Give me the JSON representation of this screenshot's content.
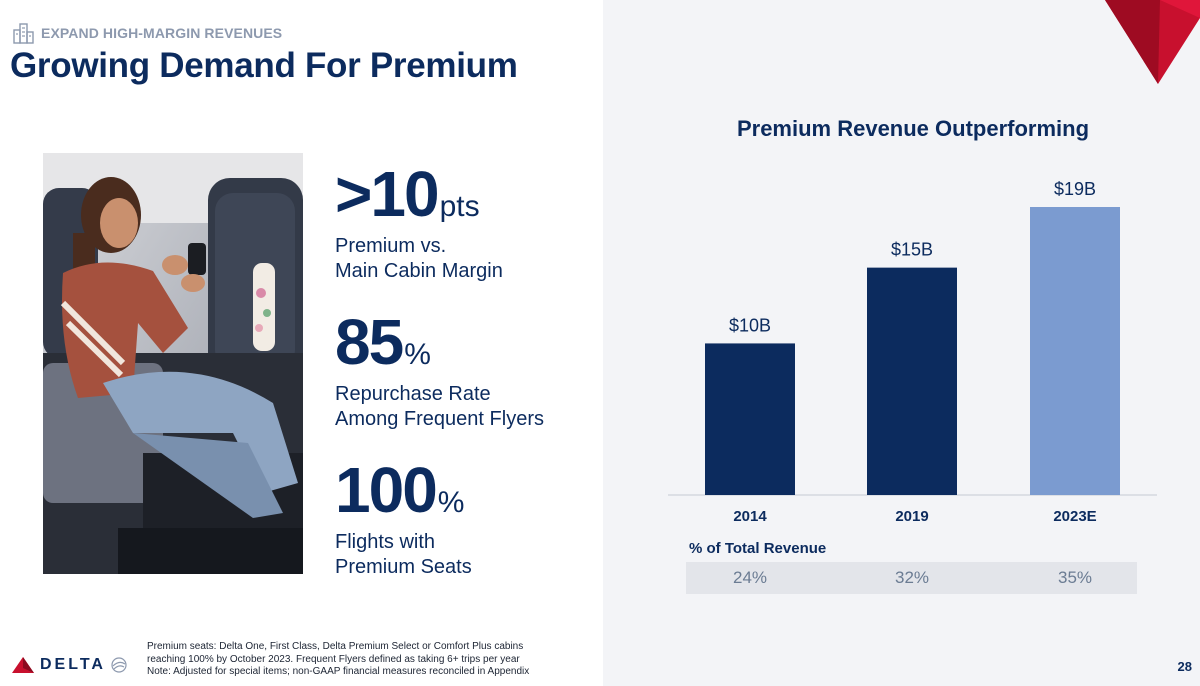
{
  "header": {
    "eyebrow": "EXPAND HIGH-MARGIN REVENUES",
    "title": "Growing Demand For Premium"
  },
  "stats": [
    {
      "value": ">10",
      "unit": "pts",
      "line1": "Premium vs.",
      "line2": "Main Cabin Margin"
    },
    {
      "value": "85",
      "unit": "%",
      "line1": "Repurchase Rate",
      "line2": "Among Frequent Flyers"
    },
    {
      "value": "100",
      "unit": "%",
      "line1": "Flights with",
      "line2": "Premium Seats"
    }
  ],
  "chart_data": {
    "type": "bar",
    "title": "Premium Revenue Outperforming",
    "categories": [
      "2014",
      "2019",
      "2023E"
    ],
    "values": [
      10,
      15,
      19
    ],
    "data_labels": [
      "$10B",
      "$15B",
      "$19B"
    ],
    "colors": [
      "#0c2b5e",
      "#0c2b5e",
      "#7b9bd0"
    ],
    "ylim": [
      0,
      19
    ],
    "grid": false,
    "legend": "none",
    "pct_label": "% of Total Revenue",
    "pct_values": [
      "24%",
      "32%",
      "35%"
    ]
  },
  "footer": {
    "brand": "DELTA",
    "note_lines": [
      "Premium seats: Delta One, First Class, Delta Premium Select or Comfort Plus cabins",
      "reaching 100% by October 2023. Frequent Flyers defined as taking 6+ trips per year",
      "Note: Adjusted for special items; non-GAAP financial measures reconciled in Appendix"
    ],
    "page_number": "28"
  },
  "colors": {
    "navy": "#0c2b5e",
    "light_blue": "#7b9bd0",
    "delta_red": "#c8102e",
    "panel_bg": "#f3f4f7"
  }
}
